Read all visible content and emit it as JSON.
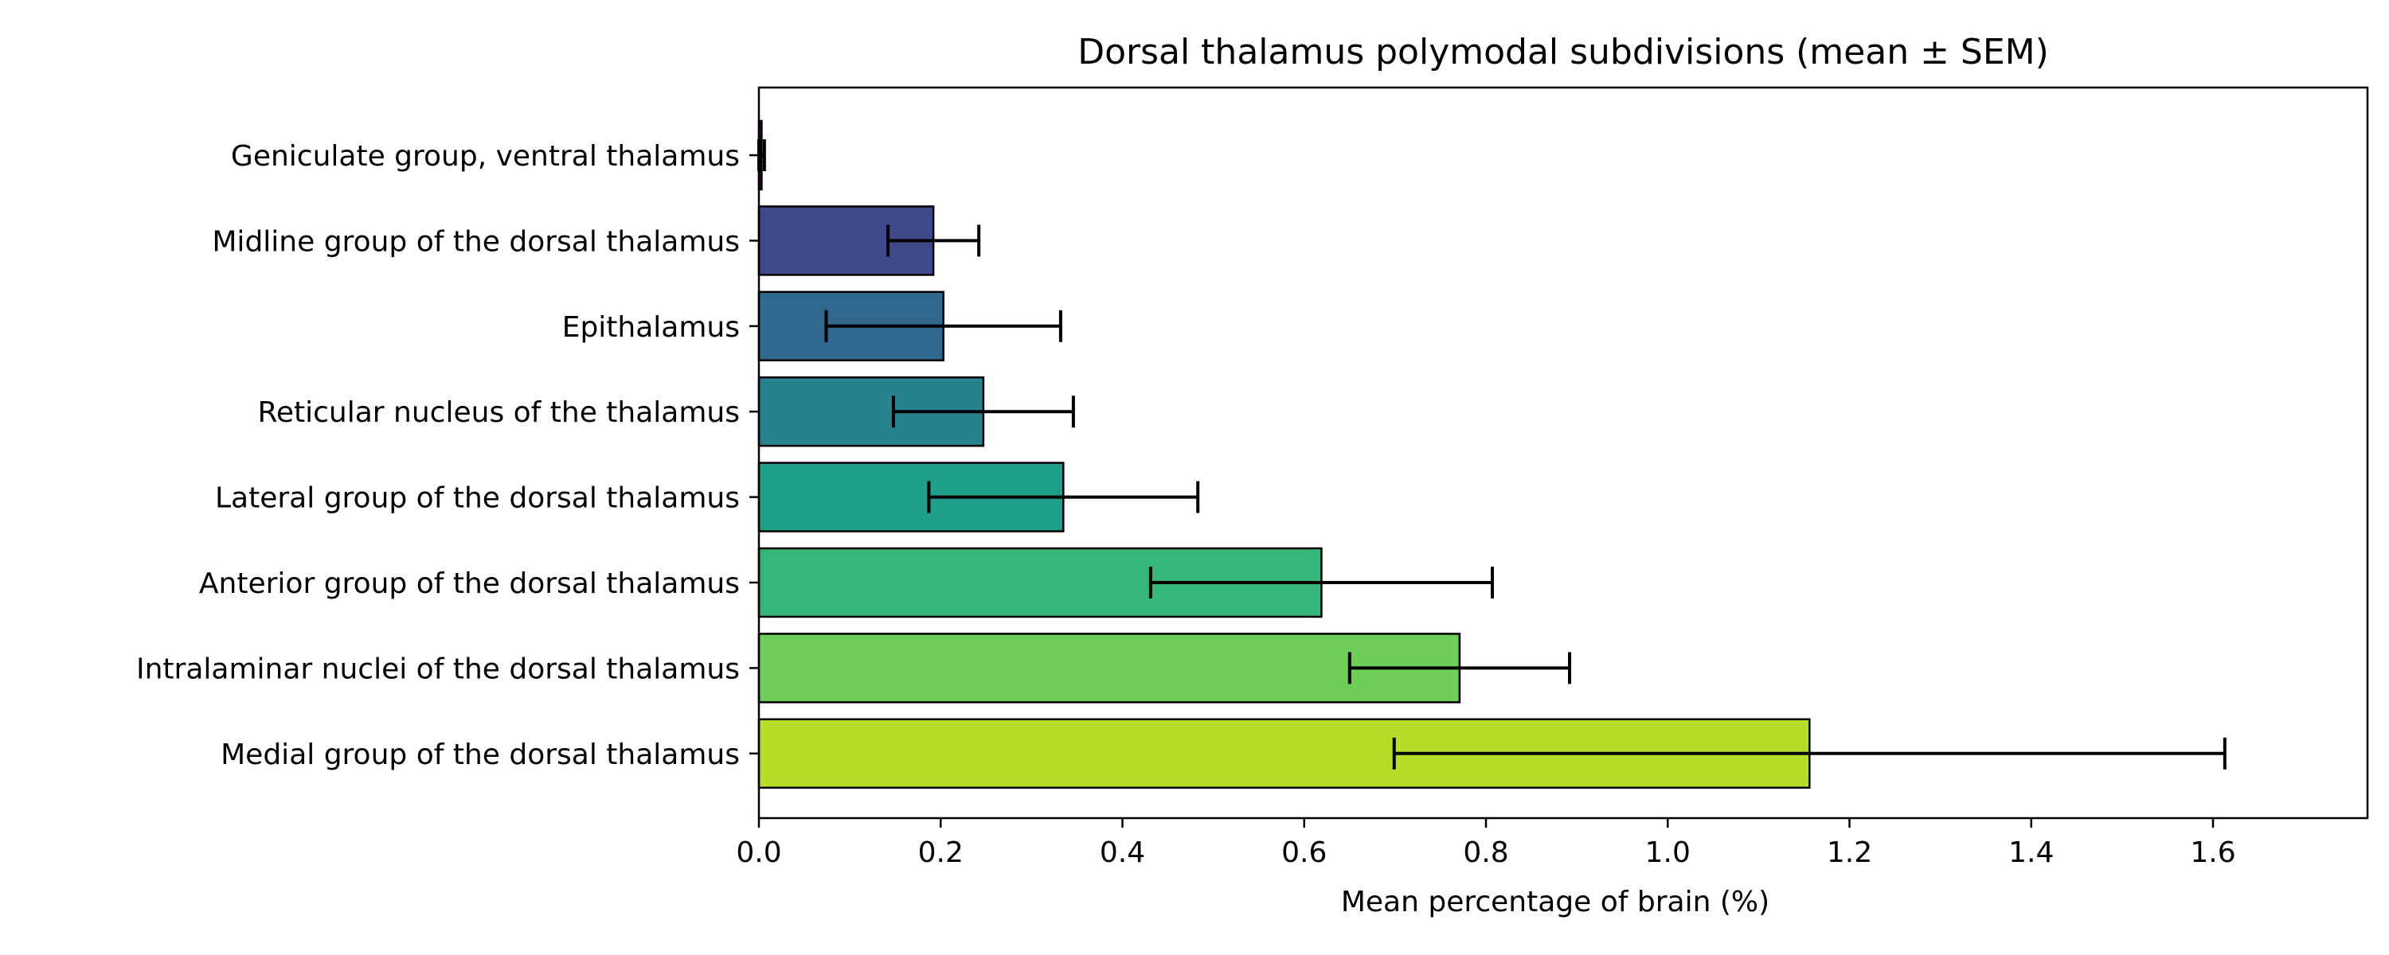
{
  "chart_data": {
    "type": "bar",
    "orientation": "horizontal",
    "title": "Dorsal thalamus polymodal subdivisions (mean ± SEM)",
    "xlabel": "Mean percentage of brain (%)",
    "ylabel": "",
    "xlim": [
      0,
      1.77
    ],
    "xticks": [
      0.0,
      0.2,
      0.4,
      0.6,
      0.8,
      1.0,
      1.2,
      1.4,
      1.6
    ],
    "xtick_labels": [
      "0.0",
      "0.2",
      "0.4",
      "0.6",
      "0.8",
      "1.0",
      "1.2",
      "1.4",
      "1.6"
    ],
    "grid": false,
    "categories": [
      "Geniculate group, ventral thalamus",
      "Midline group of the dorsal thalamus",
      "Epithalamus",
      "Reticular nucleus of the thalamus",
      "Lateral group of the dorsal thalamus",
      "Anterior group of the dorsal thalamus",
      "Intralaminar nuclei of the dorsal thalamus",
      "Medial group of the dorsal thalamus"
    ],
    "values": [
      0.003,
      0.192,
      0.203,
      0.247,
      0.335,
      0.619,
      0.771,
      1.156
    ],
    "errors": [
      0.003,
      0.05,
      0.129,
      0.099,
      0.148,
      0.188,
      0.121,
      0.457
    ],
    "colors": [
      "#440154",
      "#3e4989",
      "#31688e",
      "#26828e",
      "#1f9e89",
      "#35b779",
      "#6ece58",
      "#b5de2b"
    ]
  }
}
